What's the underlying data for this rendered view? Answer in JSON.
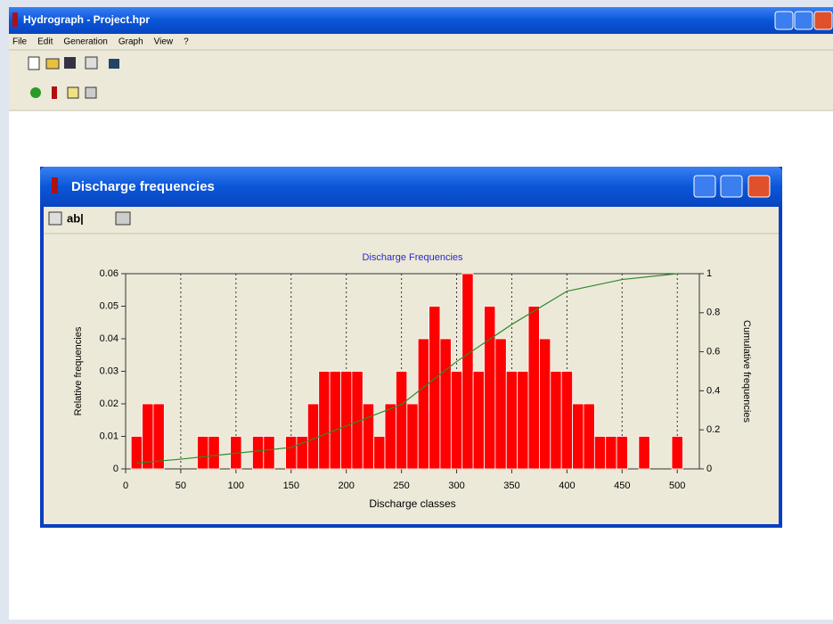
{
  "window": {
    "title": "Hydrograph - Project.hpr"
  },
  "menu": [
    "File",
    "Edit",
    "Generation",
    "Graph",
    "View",
    "?"
  ],
  "child_window": {
    "title": "Discharge frequencies",
    "toolbar_text": "ab|"
  },
  "chart_data": {
    "type": "histogram",
    "title": "Discharge Frequencies",
    "xlabel": "Discharge classes",
    "ylabel": "Relative frequencies",
    "y2label": "Cumulative frequencies",
    "bins": [
      5,
      15,
      25,
      35,
      45,
      55,
      65,
      75,
      85,
      95,
      105,
      115,
      125,
      135,
      145,
      155,
      165,
      175,
      185,
      195,
      205,
      215,
      225,
      235,
      245,
      255,
      265,
      275,
      285,
      295,
      305,
      315,
      325,
      335,
      345,
      355,
      365,
      375,
      385,
      395,
      405,
      415,
      425,
      435,
      445,
      455,
      465,
      475,
      485,
      495,
      505
    ],
    "values": [
      0.01,
      0.02,
      0.02,
      0,
      0,
      0,
      0.01,
      0.01,
      0,
      0.01,
      0,
      0.01,
      0.01,
      0,
      0.01,
      0.01,
      0.02,
      0.03,
      0.03,
      0.03,
      0.03,
      0.02,
      0.01,
      0.02,
      0.03,
      0.02,
      0.04,
      0.05,
      0.04,
      0.03,
      0.06,
      0.03,
      0.05,
      0.04,
      0.03,
      0.03,
      0.05,
      0.04,
      0.03,
      0.03,
      0.02,
      0.02,
      0.01,
      0.01,
      0.01,
      0,
      0.01,
      0,
      0,
      0.01
    ],
    "color": "#ff0000",
    "line": {
      "x": [
        10,
        50,
        100,
        150,
        200,
        250,
        300,
        350,
        400,
        450,
        500
      ],
      "values": [
        0.03,
        0.05,
        0.08,
        0.11,
        0.22,
        0.33,
        0.55,
        0.74,
        0.91,
        0.97,
        1
      ],
      "color": "#2e8b2e",
      "axis": "y2"
    },
    "xlim": [
      0,
      520
    ],
    "xticks": [
      0,
      50,
      100,
      150,
      200,
      250,
      300,
      350,
      400,
      450,
      500
    ],
    "ylim": [
      0,
      0.06
    ],
    "yticks": [
      0,
      0.01,
      0.02,
      0.03,
      0.04,
      0.05,
      0.06
    ],
    "y2lim": [
      0,
      1
    ],
    "y2ticks": [
      0,
      0.2,
      0.4,
      0.6,
      0.8,
      1
    ],
    "grid": true
  }
}
